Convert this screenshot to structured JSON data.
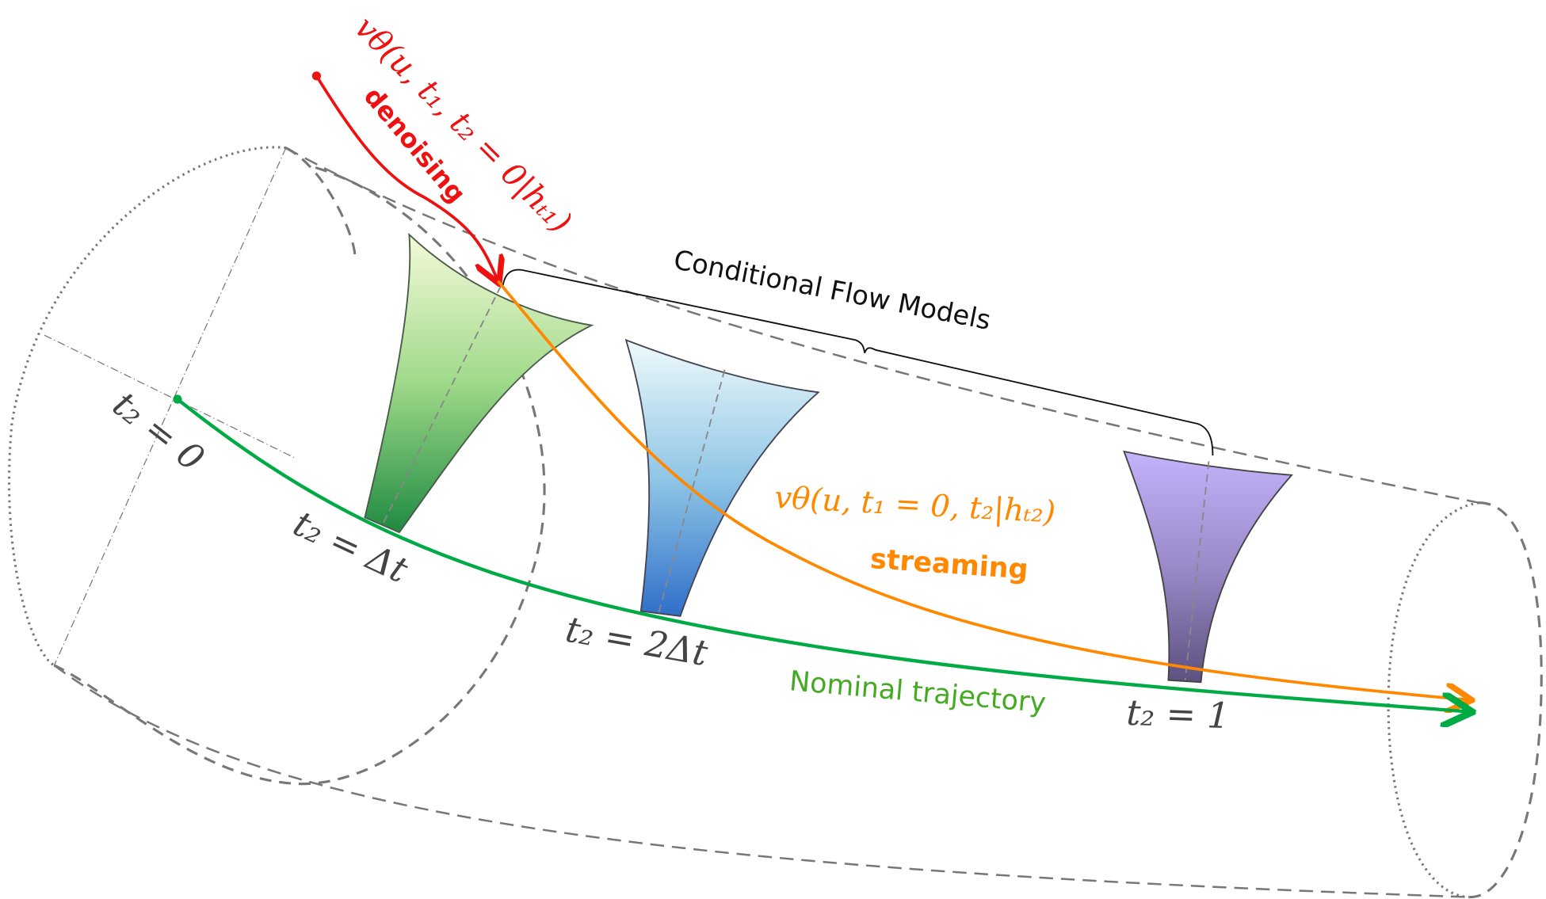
{
  "labels": {
    "denoising_formula": "vθ(u, t₁, t₂ = 0|hₜ₁)",
    "denoising": "denoising",
    "streaming_formula": "vθ(u, t₁ = 0, t₂|hₜ₂)",
    "streaming": "streaming",
    "conditional_flow_models": "Conditional Flow Models",
    "nominal_trajectory": "Nominal trajectory",
    "t2_0": "t₂ = 0",
    "t2_dt": "t₂ = Δt",
    "t2_2dt": "t₂ = 2Δt",
    "t2_1": "t₂ = 1"
  },
  "colors": {
    "denoising": "#ee1111",
    "streaming": "#ff8800",
    "nominal": "#00aa44",
    "nominal_text": "#44aa22",
    "tube": "#777777",
    "funnel_green": "#2a9a4a",
    "funnel_blue": "#3377cc",
    "funnel_purple": "#b9a8f2"
  }
}
